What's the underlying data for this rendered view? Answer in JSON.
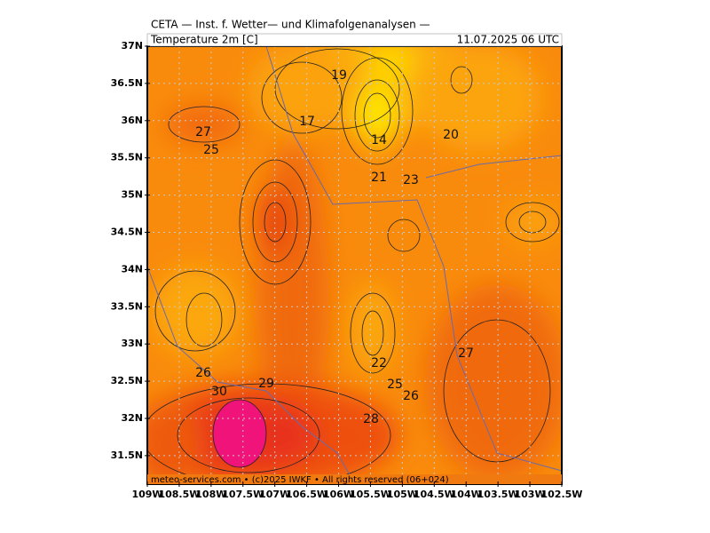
{
  "header": {
    "title": "CETA — Inst. f. Wetter— und Klimafolgenanalysen —",
    "subtitle": "Temperature 2m [C]",
    "timestamp": "11.07.2025 06 UTC"
  },
  "footer": "meteo-services.com • (c)2025 IWKF • All rights reserved (06+024)",
  "lat_labels": [
    "37N",
    "36.5N",
    "36N",
    "35.5N",
    "35N",
    "34.5N",
    "34N",
    "33.5N",
    "33N",
    "32.5N",
    "32N",
    "31.5N"
  ],
  "lon_labels": [
    "109W",
    "108.5W",
    "108W",
    "107.5W",
    "107W",
    "106.5W",
    "106W",
    "105.5W",
    "105W",
    "104.5W",
    "104W",
    "103.5W",
    "103W",
    "102.5W"
  ],
  "contour_labels": [
    "19",
    "27",
    "17",
    "14",
    "20",
    "25",
    "21",
    "23",
    "26",
    "22",
    "27",
    "30",
    "29",
    "25",
    "26",
    "28"
  ]
}
